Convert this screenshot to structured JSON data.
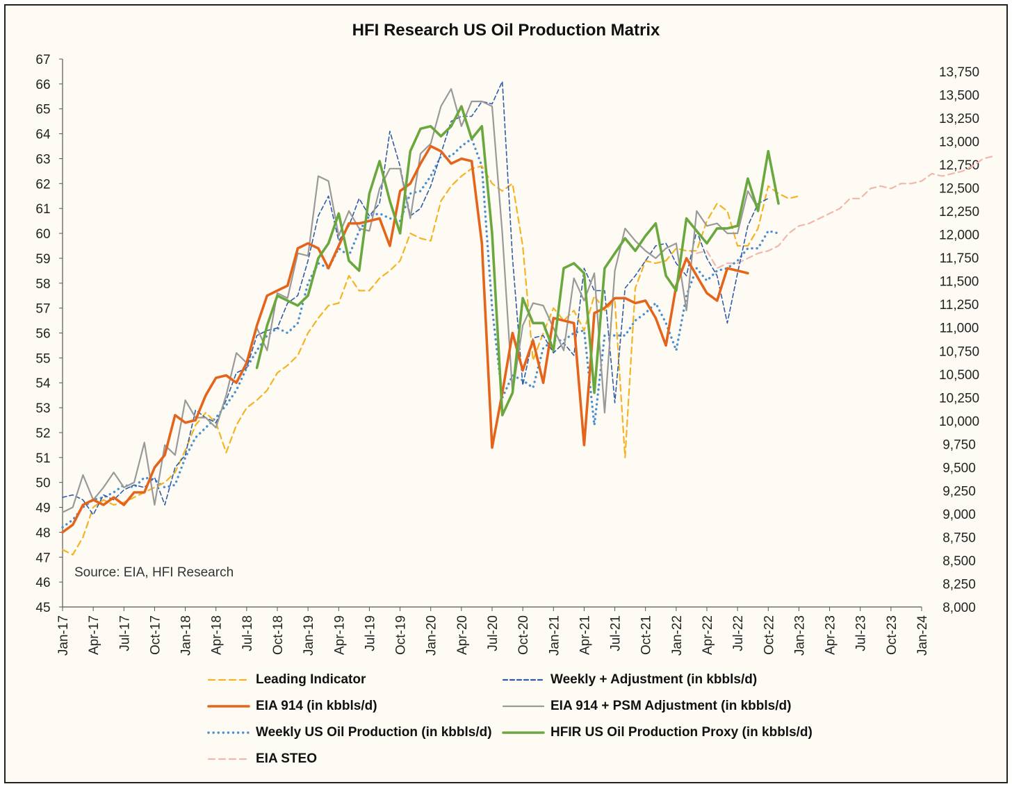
{
  "title": "HFI Research US Oil Production Matrix",
  "source": "Source: EIA, HFI Research",
  "chart_data": {
    "type": "line",
    "title": "HFI Research US Oil Production Matrix",
    "x_start": "Jan-17",
    "x_tick_labels": [
      "Jan-17",
      "Apr-17",
      "Jul-17",
      "Oct-17",
      "Jan-18",
      "Apr-18",
      "Jul-18",
      "Oct-18",
      "Jan-19",
      "Apr-19",
      "Jul-19",
      "Oct-19",
      "Jan-20",
      "Apr-20",
      "Jul-20",
      "Oct-20",
      "Jan-21",
      "Apr-21",
      "Jul-21",
      "Oct-21",
      "Jan-22",
      "Apr-22",
      "Jul-22",
      "Oct-22",
      "Jan-23",
      "Apr-23",
      "Jul-23",
      "Oct-23",
      "Jan-24"
    ],
    "left_axis": {
      "ylim": [
        45,
        67
      ],
      "ticks": [
        45,
        46,
        47,
        48,
        49,
        50,
        51,
        52,
        53,
        54,
        55,
        56,
        57,
        58,
        59,
        60,
        61,
        62,
        63,
        64,
        65,
        66,
        67
      ]
    },
    "right_axis": {
      "ylim": [
        8000,
        13750
      ],
      "ticks": [
        "8,000",
        "8,250",
        "8,500",
        "8,750",
        "9,000",
        "9,250",
        "9,500",
        "9,750",
        "10,000",
        "10,250",
        "10,500",
        "10,750",
        "11,000",
        "11,250",
        "11,500",
        "11,750",
        "12,000",
        "12,250",
        "12,500",
        "12,750",
        "13,000",
        "13,250",
        "13,500",
        "13,750"
      ]
    },
    "grid": false,
    "legend_position": "bottom",
    "series": [
      {
        "name": "Leading Indicator",
        "axis": "left",
        "color": "#f5b324",
        "dash": "dashed",
        "width": 2.2,
        "values": [
          47.3,
          47.1,
          47.8,
          49.0,
          49.3,
          49.1,
          49.2,
          49.4,
          49.6,
          49.8,
          50.0,
          50.4,
          51.3,
          52.3,
          52.8,
          52.4,
          51.2,
          52.3,
          53.0,
          53.3,
          53.7,
          54.4,
          54.7,
          55.1,
          56.0,
          56.6,
          57.1,
          57.2,
          58.3,
          57.7,
          57.7,
          58.2,
          58.5,
          58.9,
          60.0,
          59.8,
          59.7,
          61.3,
          61.9,
          62.3,
          62.6,
          62.7,
          62.0,
          61.7,
          62.0,
          59.5,
          54.9,
          56.0,
          57.0,
          56.5,
          56.9,
          56.1,
          57.5,
          56.9,
          57.3,
          51.0,
          57.8,
          58.9,
          58.8,
          58.9,
          59.4,
          59.3,
          59.3,
          60.5,
          61.2,
          60.9,
          59.5,
          59.5,
          60.2,
          61.9,
          61.6,
          61.4,
          61.5
        ]
      },
      {
        "name": "Weekly + Adjustment (in kbbls/d)",
        "axis": "left",
        "color": "#2f5ca8",
        "dash": "dashed-fine",
        "width": 1.6,
        "values": [
          49.4,
          49.5,
          49.3,
          48.7,
          49.5,
          49.3,
          49.7,
          49.9,
          49.8,
          50.2,
          49.1,
          50.6,
          51.1,
          52.9,
          52.6,
          52.4,
          53.3,
          54.4,
          54.6,
          55.9,
          56.1,
          56.2,
          57.2,
          57.5,
          58.9,
          60.7,
          61.5,
          59.7,
          60.3,
          61.4,
          60.7,
          61.2,
          64.1,
          62.7,
          60.7,
          61.0,
          61.9,
          63.2,
          64.5,
          64.7,
          64.7,
          65.3,
          65.2,
          66.1,
          59.0,
          53.9,
          55.8,
          55.9,
          55.2,
          55.6,
          55.1,
          58.6,
          57.7,
          57.7,
          53.2,
          57.8,
          58.3,
          58.9,
          59.5,
          59.6,
          58.8,
          58.3,
          60.1,
          59.0,
          58.3,
          56.4,
          58.4,
          60.3,
          61.2,
          61.4
        ]
      },
      {
        "name": "EIA 914 (in kbbls/d)",
        "axis": "left",
        "color": "#e5641c",
        "dash": "solid",
        "width": 3.6,
        "values": [
          48.0,
          48.3,
          49.1,
          49.3,
          49.1,
          49.4,
          49.1,
          49.6,
          49.6,
          50.6,
          51.1,
          52.7,
          52.4,
          52.5,
          53.5,
          54.2,
          54.3,
          54.0,
          54.8,
          56.3,
          57.5,
          57.7,
          57.9,
          59.4,
          59.6,
          59.4,
          58.6,
          59.5,
          60.4,
          60.4,
          60.5,
          60.6,
          59.5,
          61.7,
          62.0,
          62.8,
          63.5,
          63.3,
          62.8,
          63.0,
          62.9,
          59.6,
          51.4,
          53.6,
          56.0,
          54.5,
          55.7,
          54.0,
          56.6,
          56.5,
          56.4,
          51.5,
          56.8,
          57.0,
          57.4,
          57.4,
          57.2,
          57.3,
          56.6,
          55.5,
          57.9,
          59.0,
          58.3,
          57.6,
          57.3,
          58.6,
          58.5,
          58.4
        ]
      },
      {
        "name": "EIA 914 + PSM Adjustment (in kbbls/d)",
        "axis": "left",
        "color": "#999999",
        "dash": "solid",
        "width": 2.2,
        "values": [
          48.8,
          49.0,
          50.3,
          49.3,
          49.8,
          50.4,
          49.8,
          50.0,
          51.6,
          49.1,
          51.5,
          51.1,
          53.3,
          52.6,
          52.6,
          52.2,
          53.5,
          55.2,
          54.8,
          56.2,
          55.3,
          57.6,
          57.4,
          59.2,
          59.1,
          62.3,
          62.1,
          59.9,
          60.9,
          60.2,
          60.1,
          61.8,
          62.6,
          62.6,
          60.6,
          63.2,
          63.6,
          65.1,
          65.8,
          64.3,
          65.3,
          65.3,
          65.1,
          60.0,
          53.6,
          56.3,
          57.2,
          57.1,
          56.2,
          55.3,
          58.2,
          57.3,
          58.4,
          52.8,
          58.5,
          60.2,
          59.7,
          59.3,
          59.0,
          59.4,
          59.6,
          56.9,
          60.9,
          60.3,
          60.4,
          60.0,
          60.0,
          61.7,
          61.0
        ]
      },
      {
        "name": "Weekly US Oil Production (in kbbls/d)",
        "axis": "left",
        "color": "#4a90d0",
        "dash": "dotted",
        "width": 3.4,
        "values": [
          48.2,
          48.5,
          49.0,
          49.3,
          49.4,
          49.6,
          49.9,
          49.8,
          50.2,
          50.1,
          49.8,
          49.9,
          51.0,
          51.8,
          52.2,
          52.6,
          53.1,
          53.7,
          54.6,
          55.3,
          55.9,
          56.2,
          56.0,
          56.4,
          58.0,
          58.8,
          58.6,
          59.4,
          59.1,
          60.1,
          60.7,
          60.8,
          60.6,
          60.5,
          61.6,
          61.7,
          62.3,
          63.1,
          63.1,
          63.5,
          63.8,
          62.7,
          57.0,
          53.4,
          54.3,
          54.1,
          53.8,
          55.4,
          55.7,
          55.7,
          56.0,
          56.1,
          52.3,
          55.9,
          55.9,
          55.9,
          56.5,
          56.8,
          57.2,
          56.4,
          55.3,
          57.5,
          58.6,
          58.1,
          58.5,
          58.6,
          58.9,
          59.4,
          59.4,
          60.1,
          60.0
        ]
      },
      {
        "name": "HFIR US Oil Production Proxy (in kbbls/d)",
        "axis": "left",
        "color": "#6aa73e",
        "dash": "solid",
        "width": 3.6,
        "values": [
          null,
          null,
          null,
          null,
          null,
          null,
          null,
          null,
          null,
          null,
          null,
          null,
          null,
          null,
          null,
          null,
          null,
          null,
          null,
          54.6,
          56.3,
          57.5,
          57.3,
          57.1,
          57.5,
          59.0,
          59.6,
          60.8,
          58.9,
          58.5,
          61.6,
          62.9,
          61.3,
          60.0,
          63.3,
          64.2,
          64.3,
          63.9,
          64.3,
          65.1,
          63.8,
          64.3,
          60.0,
          52.7,
          53.6,
          57.4,
          56.4,
          56.4,
          55.3,
          58.6,
          58.8,
          58.4,
          53.6,
          58.6,
          59.2,
          59.8,
          59.3,
          59.9,
          60.4,
          58.3,
          57.7,
          60.6,
          60.1,
          59.6,
          60.2,
          60.2,
          60.3,
          62.2,
          60.9,
          63.3,
          61.2
        ]
      },
      {
        "name": "EIA STEO",
        "axis": "left",
        "color": "#f0b8aa",
        "dash": "dashed",
        "width": 2.2,
        "values": [
          null,
          null,
          null,
          null,
          null,
          null,
          null,
          null,
          null,
          null,
          null,
          null,
          null,
          null,
          null,
          null,
          null,
          null,
          null,
          null,
          null,
          null,
          null,
          null,
          null,
          null,
          null,
          null,
          null,
          null,
          null,
          null,
          null,
          null,
          null,
          null,
          null,
          null,
          null,
          null,
          null,
          null,
          null,
          null,
          null,
          null,
          null,
          null,
          null,
          null,
          null,
          null,
          null,
          null,
          null,
          null,
          null,
          null,
          null,
          null,
          null,
          null,
          59.2,
          59.3,
          58.6,
          58.8,
          58.8,
          59.0,
          59.2,
          59.3,
          59.5,
          60.0,
          60.3,
          60.4,
          60.6,
          60.8,
          61.0,
          61.4,
          61.4,
          61.8,
          61.9,
          61.8,
          62.0,
          62.0,
          62.1,
          62.4,
          62.3,
          62.4,
          62.5,
          62.7,
          63.0,
          63.1
        ]
      }
    ]
  },
  "legend": [
    {
      "label": "Leading Indicator",
      "color": "#f5b324",
      "dash": "dashed"
    },
    {
      "label": "Weekly + Adjustment (in kbbls/d)",
      "color": "#2f5ca8",
      "dash": "dashed-fine"
    },
    {
      "label": "EIA 914 (in kbbls/d)",
      "color": "#e5641c",
      "dash": "solid"
    },
    {
      "label": "EIA 914 + PSM Adjustment (in kbbls/d)",
      "color": "#999999",
      "dash": "solid"
    },
    {
      "label": "Weekly US Oil Production (in kbbls/d)",
      "color": "#4a90d0",
      "dash": "dotted"
    },
    {
      "label": "HFIR US Oil Production Proxy (in kbbls/d)",
      "color": "#6aa73e",
      "dash": "solid"
    },
    {
      "label": "EIA STEO",
      "color": "#f0b8aa",
      "dash": "dashed"
    }
  ]
}
